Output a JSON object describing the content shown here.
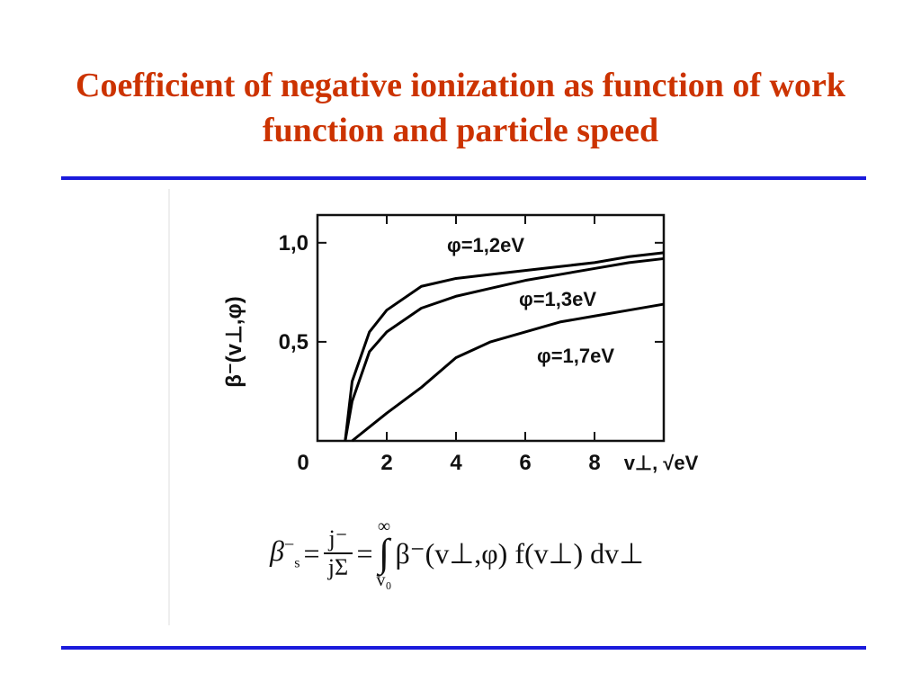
{
  "chart_data": {
    "type": "line",
    "title": "Coefficient of negative ionization as function of work function and particle speed",
    "x_label": "v⊥, √eV",
    "y_label": "β⁻(v⊥,φ)",
    "x": [
      0.8,
      1,
      1.5,
      2,
      3,
      4,
      5,
      6,
      7,
      8,
      9,
      10
    ],
    "series": [
      {
        "name": "φ=1,2eV",
        "color": "#000000",
        "values": [
          0,
          0.3,
          0.55,
          0.66,
          0.78,
          0.82,
          0.84,
          0.86,
          0.88,
          0.9,
          0.93,
          0.95
        ]
      },
      {
        "name": "φ=1,3eV",
        "color": "#000000",
        "values": [
          0,
          0.2,
          0.45,
          0.55,
          0.67,
          0.73,
          0.77,
          0.81,
          0.84,
          0.87,
          0.9,
          0.92
        ]
      },
      {
        "name": "φ=1,7eV",
        "color": "#000000",
        "values": [
          null,
          0,
          0.07,
          0.14,
          0.27,
          0.42,
          0.5,
          0.55,
          0.6,
          0.63,
          0.66,
          0.69
        ]
      }
    ],
    "xlim": [
      0,
      10
    ],
    "ylim": [
      0,
      1.14
    ],
    "xticks": [
      0,
      2,
      4,
      6,
      8
    ],
    "yticks": [
      {
        "value": 0.5,
        "label": "0,5"
      },
      {
        "value": 1,
        "label": "1,0"
      }
    ]
  },
  "formula": {
    "lhs": "β",
    "lhs_sub": "s",
    "lhs_sup": "−",
    "eq": "=",
    "num": "j⁻",
    "den": "jΣ",
    "integral": "∫",
    "upper": "∞",
    "lower": "v₀",
    "integrand": "β⁻(v⊥,φ) f(v⊥) dv⊥"
  }
}
